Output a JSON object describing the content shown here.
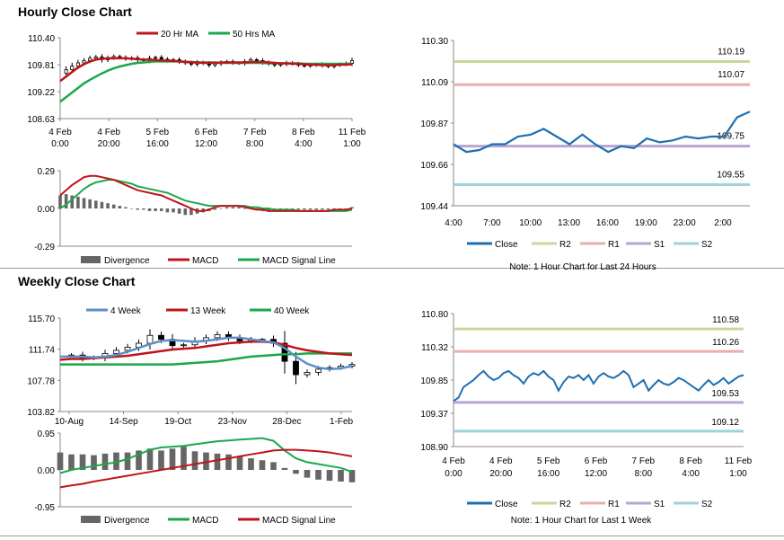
{
  "sections": {
    "hourly_title": "Hourly Close Chart",
    "weekly_title": "Weekly Close Chart"
  },
  "colors": {
    "ma20": "#c0141b",
    "ma50": "#1aa84b",
    "ma4": "#5b8fc9",
    "close": "#1f6fb0",
    "r2": "#c6d99a",
    "r1": "#e9aeae",
    "s1": "#b7a6d2",
    "s2": "#9fd2dd",
    "divergence": "#666666"
  },
  "chart_data": [
    {
      "id": "hourly_price",
      "type": "candlestick",
      "legend": [
        "20 Hr MA",
        "50 Hrs MA"
      ],
      "yticks": [
        "110.40",
        "109.81",
        "109.22",
        "108.63"
      ],
      "ylim": [
        108.63,
        110.4
      ],
      "xticks": [
        [
          "4 Feb",
          "0:00"
        ],
        [
          "4 Feb",
          "20:00"
        ],
        [
          "5 Feb",
          "16:00"
        ],
        [
          "6 Feb",
          "12:00"
        ],
        [
          "7 Feb",
          "8:00"
        ],
        [
          "8 Feb",
          "4:00"
        ],
        [
          "11 Feb",
          "1:00"
        ]
      ],
      "close": [
        109.62,
        109.7,
        109.78,
        109.85,
        109.9,
        109.95,
        109.98,
        109.92,
        109.96,
        109.99,
        109.97,
        109.94,
        109.96,
        109.92,
        109.9,
        109.95,
        109.97,
        109.93,
        109.9,
        109.92,
        109.88,
        109.85,
        109.82,
        109.86,
        109.84,
        109.8,
        109.83,
        109.86,
        109.88,
        109.85,
        109.84,
        109.88,
        109.92,
        109.9,
        109.86,
        109.83,
        109.8,
        109.82,
        109.85,
        109.83,
        109.8,
        109.78,
        109.8,
        109.82,
        109.79,
        109.77,
        109.8,
        109.82,
        109.84,
        109.9
      ],
      "ma20": [
        109.45,
        109.55,
        109.65,
        109.75,
        109.82,
        109.88,
        109.92,
        109.94,
        109.95,
        109.95,
        109.95,
        109.95,
        109.94,
        109.93,
        109.92,
        109.92,
        109.91,
        109.9,
        109.9,
        109.89,
        109.88,
        109.87,
        109.86,
        109.86,
        109.85,
        109.85,
        109.85,
        109.86,
        109.86,
        109.86,
        109.86,
        109.86,
        109.87,
        109.87,
        109.87,
        109.86,
        109.85,
        109.84,
        109.84,
        109.83,
        109.83,
        109.82,
        109.81,
        109.81,
        109.8,
        109.8,
        109.8,
        109.81,
        109.81,
        109.82
      ],
      "ma50": [
        109.0,
        109.1,
        109.2,
        109.3,
        109.4,
        109.48,
        109.55,
        109.62,
        109.68,
        109.73,
        109.77,
        109.8,
        109.83,
        109.85,
        109.86,
        109.87,
        109.88,
        109.88,
        109.88,
        109.88,
        109.88,
        109.87,
        109.87,
        109.86,
        109.86,
        109.86,
        109.86,
        109.85,
        109.85,
        109.85,
        109.85,
        109.85,
        109.85,
        109.85,
        109.85,
        109.84,
        109.84,
        109.84,
        109.84,
        109.84,
        109.84,
        109.83,
        109.83,
        109.83,
        109.83,
        109.83,
        109.83,
        109.83,
        109.83,
        109.83
      ]
    },
    {
      "id": "hourly_macd",
      "type": "bar+line",
      "yticks": [
        "0.29",
        "0.00",
        "-0.29"
      ],
      "ylim": [
        -0.29,
        0.29
      ],
      "legend": [
        "Divergence",
        "MACD",
        "MACD Signal Line"
      ],
      "divergence": [
        0.1,
        0.11,
        0.1,
        0.09,
        0.08,
        0.07,
        0.06,
        0.05,
        0.04,
        0.03,
        0.02,
        0.01,
        0.0,
        -0.01,
        -0.01,
        -0.02,
        -0.02,
        -0.02,
        -0.03,
        -0.03,
        -0.04,
        -0.05,
        -0.05,
        -0.04,
        -0.03,
        -0.02,
        -0.01,
        0.0,
        0.01,
        0.01,
        0.01,
        0.0,
        0.0,
        -0.01,
        -0.02,
        -0.02,
        -0.02,
        -0.02,
        -0.01,
        -0.01,
        -0.01,
        -0.01,
        -0.01,
        -0.01,
        -0.01,
        -0.01,
        -0.01,
        -0.01,
        0.0,
        0.01
      ],
      "macd": [
        0.1,
        0.14,
        0.18,
        0.21,
        0.24,
        0.25,
        0.25,
        0.24,
        0.23,
        0.22,
        0.2,
        0.18,
        0.16,
        0.14,
        0.13,
        0.12,
        0.11,
        0.1,
        0.08,
        0.06,
        0.04,
        0.02,
        0.0,
        -0.02,
        -0.02,
        -0.01,
        0.01,
        0.02,
        0.02,
        0.02,
        0.02,
        0.01,
        0.0,
        -0.01,
        -0.01,
        -0.02,
        -0.02,
        -0.02,
        -0.02,
        -0.02,
        -0.02,
        -0.02,
        -0.02,
        -0.02,
        -0.02,
        -0.02,
        -0.01,
        -0.01,
        -0.01,
        0.0
      ],
      "signal": [
        0.0,
        0.03,
        0.07,
        0.11,
        0.15,
        0.18,
        0.2,
        0.21,
        0.22,
        0.22,
        0.21,
        0.2,
        0.19,
        0.17,
        0.16,
        0.15,
        0.14,
        0.13,
        0.12,
        0.1,
        0.08,
        0.06,
        0.05,
        0.04,
        0.03,
        0.02,
        0.02,
        0.02,
        0.02,
        0.02,
        0.02,
        0.02,
        0.01,
        0.01,
        0.0,
        0.0,
        -0.01,
        -0.01,
        -0.01,
        -0.01,
        -0.02,
        -0.02,
        -0.02,
        -0.02,
        -0.02,
        -0.02,
        -0.02,
        -0.02,
        -0.02,
        -0.01
      ]
    },
    {
      "id": "hourly_pivot",
      "type": "line",
      "yticks": [
        "110.30",
        "110.09",
        "109.87",
        "109.66",
        "109.44"
      ],
      "ylim": [
        109.44,
        110.3
      ],
      "xticks": [
        "4:00",
        "7:00",
        "10:00",
        "13:00",
        "16:00",
        "19:00",
        "23:00",
        "2:00"
      ],
      "levels": {
        "R2": 110.19,
        "R1": 110.07,
        "S1": 109.75,
        "S2": 109.55
      },
      "level_labels": {
        "R2": "110.19",
        "R1": "110.07",
        "S1": "109.75",
        "S2": "109.55"
      },
      "close": [
        109.76,
        109.72,
        109.73,
        109.76,
        109.76,
        109.8,
        109.81,
        109.84,
        109.8,
        109.76,
        109.81,
        109.76,
        109.72,
        109.75,
        109.74,
        109.79,
        109.77,
        109.78,
        109.8,
        109.79,
        109.8,
        109.8,
        109.9,
        109.93
      ],
      "legend": [
        "Close",
        "R2",
        "R1",
        "S1",
        "S2"
      ],
      "note": "Note: 1 Hour Chart for Last 24 Hours"
    },
    {
      "id": "weekly_price",
      "type": "candlestick",
      "legend": [
        "4 Week",
        "13 Week",
        "40 Week"
      ],
      "yticks": [
        "115.70",
        "111.74",
        "107.78",
        "103.82"
      ],
      "ylim": [
        103.82,
        115.7
      ],
      "xticks": [
        "10-Aug",
        "14-Sep",
        "19-Oct",
        "23-Nov",
        "28-Dec",
        "1-Feb"
      ],
      "close": [
        110.9,
        111.0,
        110.6,
        110.7,
        111.2,
        111.6,
        112.0,
        112.5,
        113.5,
        113.0,
        112.2,
        112.3,
        112.8,
        113.2,
        113.6,
        113.2,
        112.8,
        113.0,
        113.0,
        112.5,
        110.2,
        108.5,
        108.8,
        109.2,
        109.4,
        109.6,
        109.8
      ],
      "ma4": [
        110.8,
        110.8,
        110.8,
        110.7,
        110.8,
        111.0,
        111.4,
        111.9,
        112.4,
        112.8,
        112.9,
        112.8,
        112.7,
        112.8,
        113.0,
        113.2,
        113.2,
        113.0,
        112.8,
        112.6,
        111.9,
        110.8,
        109.9,
        109.4,
        109.2,
        109.3,
        109.6
      ],
      "ma13": [
        110.4,
        110.5,
        110.5,
        110.6,
        110.7,
        110.8,
        110.9,
        111.1,
        111.3,
        111.5,
        111.7,
        111.8,
        111.9,
        112.1,
        112.3,
        112.5,
        112.6,
        112.7,
        112.7,
        112.6,
        112.3,
        111.9,
        111.6,
        111.4,
        111.2,
        111.1,
        111.0
      ],
      "ma40": [
        109.8,
        109.8,
        109.8,
        109.8,
        109.8,
        109.8,
        109.8,
        109.8,
        109.8,
        109.8,
        109.8,
        109.9,
        110.0,
        110.1,
        110.2,
        110.4,
        110.6,
        110.8,
        110.9,
        111.0,
        111.1,
        111.1,
        111.2,
        111.2,
        111.2,
        111.2,
        111.2
      ]
    },
    {
      "id": "weekly_macd",
      "type": "bar+line",
      "yticks": [
        "0.95",
        "0.00",
        "-0.95"
      ],
      "ylim": [
        -0.95,
        0.95
      ],
      "legend": [
        "Divergence",
        "MACD",
        "MACD Signal Line"
      ],
      "divergence": [
        0.45,
        0.4,
        0.4,
        0.38,
        0.42,
        0.45,
        0.45,
        0.5,
        0.55,
        0.5,
        0.55,
        0.6,
        0.48,
        0.45,
        0.42,
        0.4,
        0.35,
        0.3,
        0.25,
        0.2,
        0.05,
        -0.1,
        -0.2,
        -0.25,
        -0.28,
        -0.3,
        -0.32
      ],
      "macd": [
        -0.08,
        0.0,
        0.05,
        0.1,
        0.15,
        0.2,
        0.28,
        0.4,
        0.52,
        0.58,
        0.6,
        0.62,
        0.66,
        0.7,
        0.74,
        0.76,
        0.78,
        0.8,
        0.82,
        0.75,
        0.5,
        0.3,
        0.2,
        0.15,
        0.1,
        0.05,
        -0.05
      ],
      "signal": [
        -0.45,
        -0.4,
        -0.36,
        -0.3,
        -0.25,
        -0.2,
        -0.15,
        -0.1,
        -0.05,
        0.0,
        0.05,
        0.1,
        0.15,
        0.2,
        0.25,
        0.3,
        0.35,
        0.4,
        0.45,
        0.5,
        0.52,
        0.52,
        0.5,
        0.48,
        0.45,
        0.4,
        0.35
      ]
    },
    {
      "id": "weekly_pivot",
      "type": "line",
      "yticks": [
        "110.80",
        "110.32",
        "109.85",
        "109.37",
        "108.90"
      ],
      "ylim": [
        108.9,
        110.8
      ],
      "xticks": [
        [
          "4 Feb",
          "0:00"
        ],
        [
          "4 Feb",
          "20:00"
        ],
        [
          "5 Feb",
          "16:00"
        ],
        [
          "6 Feb",
          "12:00"
        ],
        [
          "7 Feb",
          "8:00"
        ],
        [
          "8 Feb",
          "4:00"
        ],
        [
          "11 Feb",
          "1:00"
        ]
      ],
      "levels": {
        "R2": 110.58,
        "R1": 110.26,
        "S1": 109.53,
        "S2": 109.12
      },
      "level_labels": {
        "R2": "110.58",
        "R1": "110.26",
        "S1": "109.53",
        "S2": "109.12"
      },
      "close": [
        109.55,
        109.6,
        109.75,
        109.8,
        109.85,
        109.92,
        109.98,
        109.9,
        109.85,
        109.88,
        109.95,
        109.98,
        109.92,
        109.88,
        109.8,
        109.9,
        109.95,
        109.92,
        109.98,
        109.9,
        109.85,
        109.7,
        109.82,
        109.9,
        109.88,
        109.92,
        109.85,
        109.92,
        109.8,
        109.9,
        109.95,
        109.9,
        109.88,
        109.92,
        109.98,
        109.92,
        109.75,
        109.8,
        109.85,
        109.7,
        109.78,
        109.85,
        109.8,
        109.78,
        109.82,
        109.88,
        109.85,
        109.8,
        109.75,
        109.7,
        109.78,
        109.85,
        109.78,
        109.82,
        109.88,
        109.8,
        109.85,
        109.9,
        109.92
      ],
      "legend": [
        "Close",
        "R2",
        "R1",
        "S1",
        "S2"
      ],
      "note": "Note: 1 Hour Chart for Last 1 Week"
    }
  ]
}
